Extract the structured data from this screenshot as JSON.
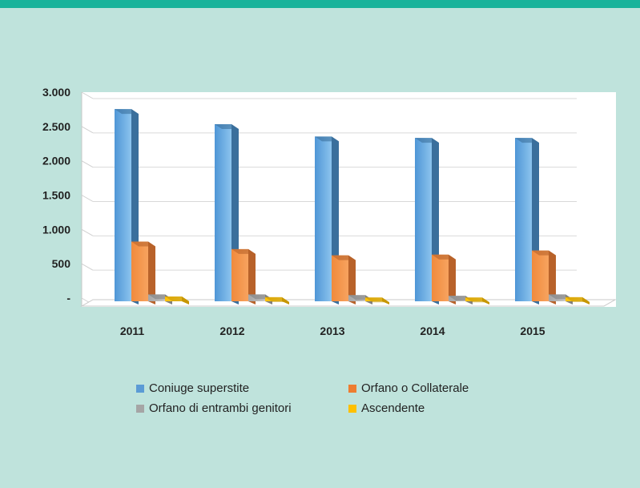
{
  "chart_data": {
    "type": "bar",
    "categories": [
      "2011",
      "2012",
      "2013",
      "2014",
      "2015"
    ],
    "series": [
      {
        "name": "Coniuge superstite",
        "values": [
          2800,
          2580,
          2400,
          2380,
          2380
        ],
        "color": "#5b9bd5"
      },
      {
        "name": "Orfano o Collaterale",
        "values": [
          870,
          760,
          670,
          680,
          740
        ],
        "color": "#ed7d31"
      },
      {
        "name": "Orfano di entrambi genitori",
        "values": [
          100,
          100,
          90,
          80,
          100
        ],
        "color": "#a5a5a5"
      },
      {
        "name": "Ascendente",
        "values": [
          70,
          60,
          55,
          55,
          60
        ],
        "color": "#ffc000"
      }
    ],
    "y_ticks": [
      "-",
      "500",
      "1.000",
      "1.500",
      "2.000",
      "2.500",
      "3.000"
    ],
    "ylim": [
      0,
      3000
    ],
    "grid": true,
    "legend": "bottom",
    "title": "",
    "xlabel": "",
    "ylabel": ""
  }
}
